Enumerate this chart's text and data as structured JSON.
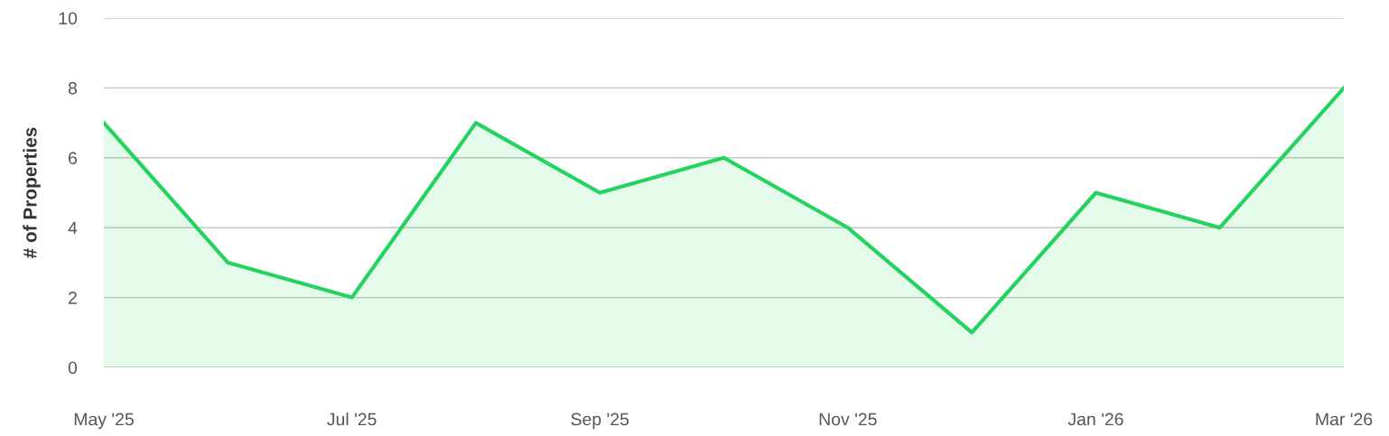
{
  "chart_data": {
    "type": "area",
    "ylabel": "# of Properties",
    "categories": [
      "May '25",
      null,
      "Jul '25",
      null,
      "Sep '25",
      null,
      "Nov '25",
      null,
      "Jan '26",
      null,
      "Mar '26"
    ],
    "series": [
      {
        "color": "#22d35e",
        "values": [
          7,
          3,
          2,
          7,
          5,
          6,
          4,
          1,
          5,
          4,
          8
        ]
      }
    ],
    "ylim": [
      0,
      10
    ],
    "yticks": [
      0,
      2,
      4,
      6,
      8,
      10
    ],
    "grid": "y",
    "legend": false,
    "marker": "none",
    "line_style": "solid"
  }
}
